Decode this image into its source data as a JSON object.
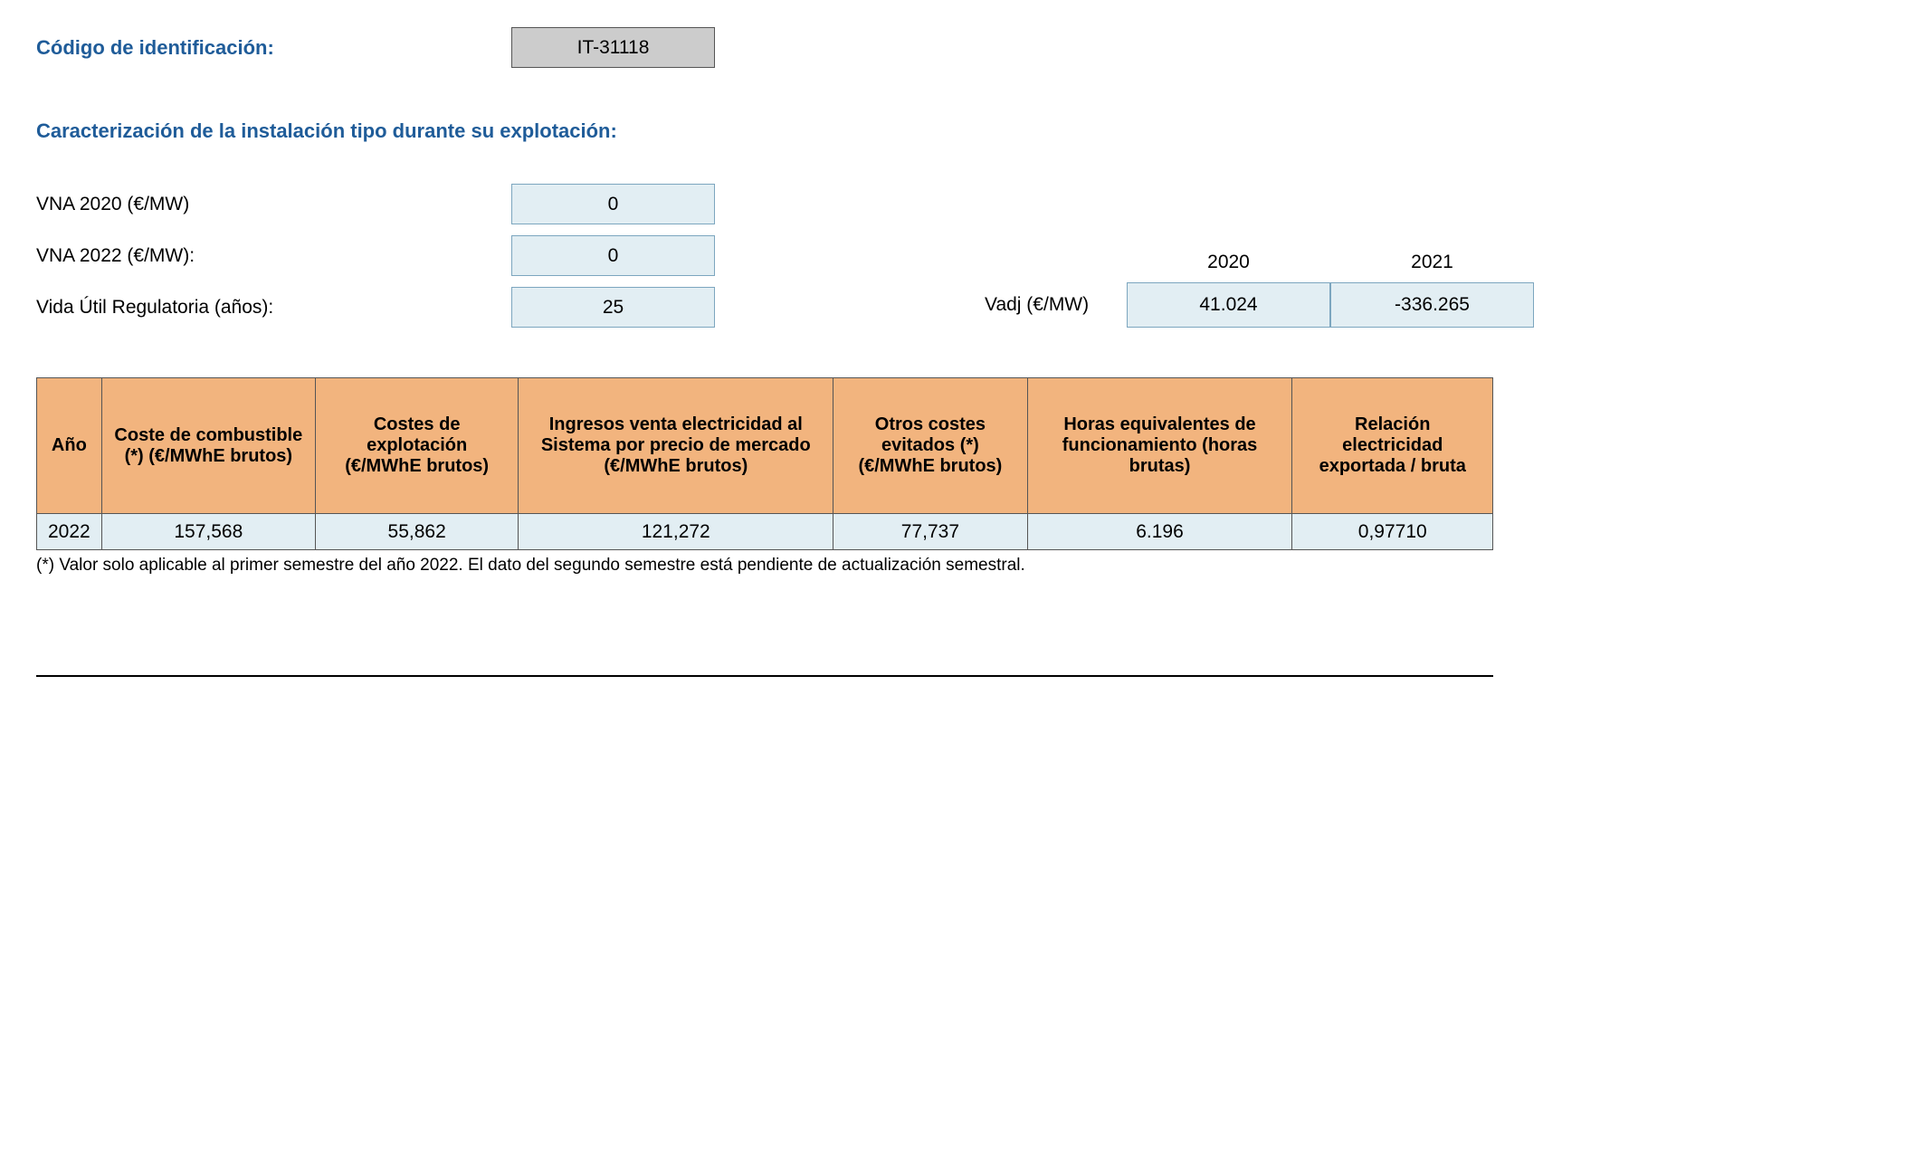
{
  "header": {
    "id_label": "Código de identificación:",
    "id_value": "IT-31118",
    "section_title": "Caracterización de la instalación tipo durante su explotación:"
  },
  "params": {
    "vna2020_label": "VNA 2020 (€/MW)",
    "vna2020_value": "0",
    "vna2022_label": "VNA 2022 (€/MW):",
    "vna2022_value": "0",
    "vida_label": "Vida Útil Regulatoria (años):",
    "vida_value": "25"
  },
  "vadj": {
    "label": "Vadj (€/MW)",
    "years": [
      "2020",
      "2021"
    ],
    "values": [
      "41.024",
      "-336.265"
    ]
  },
  "table": {
    "columns": [
      "Año",
      "Coste de combustible (*) (€/MWhE brutos)",
      "Costes de explotación (€/MWhE brutos)",
      "Ingresos venta electricidad al Sistema por precio de mercado (€/MWhE brutos)",
      "Otros costes evitados (*) (€/MWhE brutos)",
      "Horas equivalentes de funcionamiento (horas brutas)",
      "Relación electricidad exportada / bruta"
    ],
    "col_widths": [
      "230px",
      "230px",
      "230px",
      "230px",
      "230px",
      "230px",
      "230px"
    ],
    "rows": [
      [
        "2022",
        "157,568",
        "55,862",
        "121,272",
        "77,737",
        "6.196",
        "0,97710"
      ]
    ],
    "header_bg": "#f2b47e",
    "cell_bg": "#e2eef3",
    "border_color": "#555555"
  },
  "footnote": "(*) Valor solo aplicable al primer semestre del año 2022. El dato del segundo semestre está pendiente de actualización semestral.",
  "colors": {
    "heading": "#1f5c99",
    "box_bg_light": "#e2eef3",
    "box_bg_gray": "#cccccc",
    "box_border": "#7ca6bf"
  }
}
